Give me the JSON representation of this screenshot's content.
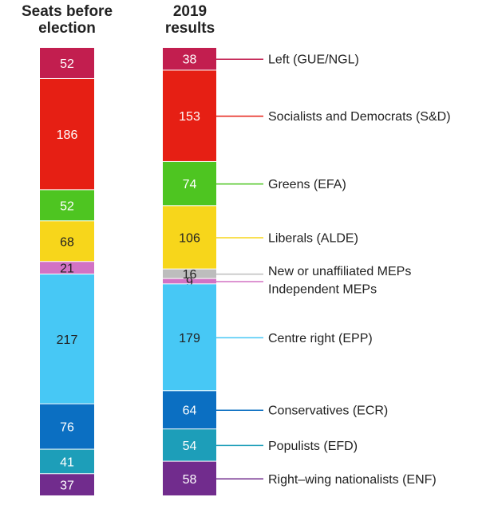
{
  "chart_data": {
    "type": "stacked-bar",
    "columns": [
      {
        "header": [
          "Seats before",
          "election"
        ]
      },
      {
        "header": [
          "2019",
          "results"
        ]
      }
    ],
    "series": [
      {
        "name": "Left (GUE/NGL)",
        "color": "#c21e4f",
        "before": 52,
        "after": 38
      },
      {
        "name": "Socialists and Democrats (S&D)",
        "color": "#e61f14",
        "before": 186,
        "after": 153
      },
      {
        "name": "Greens (EFA)",
        "color": "#4ec521",
        "before": 52,
        "after": 74
      },
      {
        "name": "Liberals (ALDE)",
        "color": "#f7d61b",
        "before": 68,
        "after": 106
      },
      {
        "name": "New or unaffiliated MEPs",
        "color": "#bdbdbd",
        "before": null,
        "after": 16
      },
      {
        "name": "Independent MEPs",
        "color": "#d272c4",
        "before": 21,
        "after": 9
      },
      {
        "name": "Centre right (EPP)",
        "color": "#47c8f5",
        "before": 217,
        "after": 179
      },
      {
        "name": "Conservatives (ECR)",
        "color": "#0b6fc2",
        "before": 76,
        "after": 64
      },
      {
        "name": "Populists (EFD)",
        "color": "#1d9eb9",
        "before": 41,
        "after": 54
      },
      {
        "name": "Right–wing nationalists (ENF)",
        "color": "#712c8d",
        "before": 37,
        "after": 58
      }
    ]
  }
}
